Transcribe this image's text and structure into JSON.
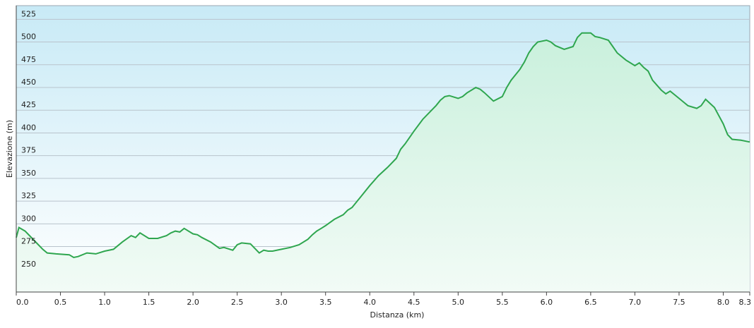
{
  "chart_data": {
    "type": "area",
    "title": "",
    "xlabel": "Distanza  (km)",
    "ylabel": "Elevazione (m)",
    "xlim": [
      0,
      8.3
    ],
    "ylim": [
      225,
      540
    ],
    "grid": true,
    "x_ticks": [
      "0.0",
      "0.5",
      "1.0",
      "1.5",
      "2.0",
      "2.5",
      "3.0",
      "3.5",
      "4.0",
      "4.5",
      "5.0",
      "5.5",
      "6.0",
      "6.5",
      "7.0",
      "7.5",
      "8.0",
      "8.3"
    ],
    "y_ticks": [
      "250",
      "275",
      "300",
      "325",
      "350",
      "375",
      "400",
      "425",
      "450",
      "475",
      "500",
      "525"
    ],
    "colors": {
      "line": "#2fa64f",
      "fill_top": "#c9f0dc",
      "fill_bottom": "#f2fbf6",
      "bg_top": "#c8eaf6",
      "bg_bottom": "#ffffff",
      "grid": "#b9c3cc"
    },
    "series": [
      {
        "x": [
          0.0,
          0.03,
          0.1,
          0.2,
          0.3,
          0.35,
          0.45,
          0.6,
          0.65,
          0.7,
          0.8,
          0.9,
          1.0,
          1.1,
          1.2,
          1.3,
          1.35,
          1.4,
          1.5,
          1.6,
          1.7,
          1.75,
          1.8,
          1.85,
          1.9,
          2.0,
          2.05,
          2.1,
          2.2,
          2.3,
          2.35,
          2.45,
          2.5,
          2.55,
          2.65,
          2.75,
          2.8,
          2.85,
          2.9,
          3.0,
          3.1,
          3.2,
          3.3,
          3.35,
          3.4,
          3.45,
          3.5,
          3.6,
          3.7,
          3.75,
          3.8,
          3.9,
          4.0,
          4.1,
          4.2,
          4.3,
          4.35,
          4.4,
          4.5,
          4.6,
          4.7,
          4.75,
          4.8,
          4.85,
          4.9,
          5.0,
          5.05,
          5.1,
          5.2,
          5.25,
          5.3,
          5.4,
          5.5,
          5.55,
          5.6,
          5.7,
          5.75,
          5.8,
          5.85,
          5.9,
          6.0,
          6.05,
          6.1,
          6.2,
          6.3,
          6.35,
          6.4,
          6.5,
          6.55,
          6.6,
          6.7,
          6.75,
          6.8,
          6.9,
          7.0,
          7.05,
          7.1,
          7.15,
          7.2,
          7.3,
          7.35,
          7.4,
          7.5,
          7.55,
          7.6,
          7.7,
          7.75,
          7.8,
          7.9,
          8.0,
          8.05,
          8.1,
          8.2,
          8.3
        ],
        "values": [
          285,
          296,
          292,
          282,
          272,
          268,
          267,
          266,
          263,
          264,
          268,
          267,
          270,
          272,
          280,
          287,
          285,
          290,
          284,
          284,
          287,
          290,
          292,
          291,
          295,
          289,
          288,
          285,
          280,
          273,
          274,
          271,
          277,
          279,
          278,
          268,
          271,
          270,
          270,
          272,
          274,
          277,
          283,
          288,
          292,
          295,
          298,
          305,
          310,
          315,
          318,
          330,
          342,
          353,
          362,
          372,
          382,
          388,
          402,
          415,
          425,
          430,
          436,
          440,
          441,
          438,
          440,
          444,
          450,
          448,
          444,
          435,
          440,
          450,
          458,
          470,
          478,
          488,
          495,
          500,
          502,
          500,
          496,
          492,
          495,
          505,
          510,
          510,
          506,
          505,
          502,
          495,
          488,
          480,
          474,
          477,
          472,
          468,
          458,
          447,
          443,
          446,
          438,
          434,
          430,
          427,
          430,
          437,
          428,
          410,
          398,
          393,
          392,
          390
        ]
      }
    ]
  }
}
